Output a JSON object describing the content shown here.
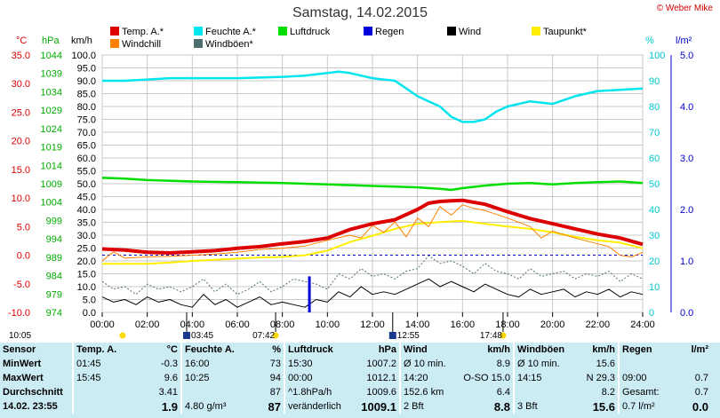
{
  "title": "Samstag, 14.02.2015",
  "copyright": "© Weber Mike",
  "legend": [
    {
      "label": "Temp. A.*",
      "color": "#dd0000"
    },
    {
      "label": "Feuchte A.*",
      "color": "#00e5ee"
    },
    {
      "label": "Luftdruck",
      "color": "#00dd00"
    },
    {
      "label": "Regen",
      "color": "#0000dd"
    },
    {
      "label": "Wind",
      "color": "#000000"
    },
    {
      "label": "Taupunkt*",
      "color": "#ffee00"
    },
    {
      "label": "Windchill",
      "color": "#ff8000"
    },
    {
      "label": "Windböen*",
      "color": "#4f6f6f"
    }
  ],
  "axis_heads": {
    "celsius": "°C",
    "hpa": "hPa",
    "kmh": "km/h",
    "percent": "%",
    "lm2": "l/m²"
  },
  "chart_data": {
    "type": "line",
    "x_ticks": [
      "00:00",
      "02:00",
      "04:00",
      "06:00",
      "08:00",
      "10:00",
      "12:00",
      "14:00",
      "16:00",
      "18:00",
      "20:00",
      "22:00",
      "24:00"
    ],
    "xlim": [
      0,
      24
    ],
    "axes": {
      "celsius": {
        "ylim": [
          -10,
          35
        ],
        "ticks": [
          "35.0",
          "30.0",
          "25.0",
          "20.0",
          "15.0",
          "10.0",
          "5.0",
          "0.0",
          "-5.0",
          "-10.0"
        ]
      },
      "hpa": {
        "ylim": [
          974,
          1044
        ],
        "ticks": [
          "1044",
          "1039",
          "1034",
          "1029",
          "1024",
          "1019",
          "1014",
          "1009",
          "1004",
          "999",
          "994",
          "989",
          "984",
          "979",
          "974"
        ]
      },
      "kmh": {
        "ylim": [
          0,
          100
        ],
        "ticks": [
          "100.0",
          "95.0",
          "90.0",
          "85.0",
          "80.0",
          "75.0",
          "70.0",
          "65.0",
          "60.0",
          "55.0",
          "50.0",
          "45.0",
          "40.0",
          "35.0",
          "30.0",
          "25.0",
          "20.0",
          "15.0",
          "10.0",
          "5.0",
          "0.0"
        ]
      },
      "percent": {
        "ylim": [
          0,
          100
        ],
        "ticks": [
          "100",
          "90",
          "80",
          "70",
          "60",
          "50",
          "40",
          "30",
          "20",
          "10",
          "0"
        ]
      },
      "lm2": {
        "ylim": [
          0,
          5
        ],
        "ticks": [
          "5.0",
          "4.0",
          "3.0",
          "2.0",
          "1.0",
          "0.0"
        ]
      }
    },
    "series": [
      {
        "name": "Feuchte A.*",
        "unit": "%",
        "x": [
          0,
          1,
          2,
          3,
          4,
          6,
          8,
          9,
          10,
          10.5,
          11,
          12,
          12.5,
          13,
          13.5,
          14,
          14.5,
          15,
          15.5,
          16,
          16.5,
          17,
          17.5,
          18,
          19,
          20,
          21,
          22,
          23,
          24
        ],
        "y": [
          90,
          90,
          90.5,
          91,
          91,
          91,
          91.5,
          92,
          93,
          93.5,
          93,
          91,
          90.5,
          90,
          87,
          84,
          82,
          80,
          76,
          74,
          74,
          75,
          78,
          80,
          82,
          81,
          84,
          86,
          86.5,
          87
        ]
      },
      {
        "name": "Luftdruck",
        "unit": "hPa",
        "x": [
          0,
          1,
          2,
          4,
          6,
          8,
          10,
          12,
          13,
          14,
          15,
          15.5,
          16,
          17,
          18,
          19,
          20,
          21,
          22,
          23,
          24
        ],
        "y": [
          1010.6,
          1010.4,
          1010,
          1009.6,
          1009.4,
          1009.2,
          1008.8,
          1008.4,
          1008.2,
          1008,
          1007.6,
          1007.3,
          1007.8,
          1008.5,
          1009,
          1009.2,
          1008.8,
          1009.2,
          1009.4,
          1009.6,
          1009.2
        ]
      },
      {
        "name": "Temp. A.*",
        "unit": "°C",
        "x": [
          0,
          1,
          2,
          3,
          4,
          5,
          6,
          7,
          8,
          9,
          10,
          11,
          12,
          13,
          14,
          14.5,
          15,
          15.5,
          16,
          17,
          18,
          19,
          20,
          21,
          22,
          23,
          24
        ],
        "y": [
          1.1,
          0.9,
          0.5,
          0.4,
          0.6,
          0.8,
          1.2,
          1.5,
          2.0,
          2.4,
          3.0,
          4.5,
          5.5,
          6.2,
          8.0,
          9.1,
          9.4,
          9.5,
          9.6,
          8.9,
          7.6,
          6.4,
          5.5,
          4.6,
          3.7,
          3.0,
          1.9
        ]
      },
      {
        "name": "Taupunkt*",
        "unit": "°C",
        "x": [
          0,
          1,
          2,
          3,
          4,
          5,
          6,
          7,
          8,
          9,
          10,
          11,
          12,
          13,
          14,
          15,
          16,
          17,
          18,
          19,
          20,
          21,
          22,
          23,
          24
        ],
        "y": [
          -1.5,
          -1.5,
          -1.5,
          -1.3,
          -1.0,
          -0.8,
          -0.6,
          -0.4,
          -0.3,
          0.0,
          0.8,
          2.3,
          3.4,
          4.6,
          5.5,
          5.8,
          6.0,
          5.5,
          5.0,
          4.6,
          4.0,
          3.2,
          2.6,
          2.2,
          1.2
        ]
      },
      {
        "name": "Windchill",
        "unit": "°C",
        "x": [
          0,
          0.5,
          1,
          2,
          3,
          4,
          5,
          6,
          7,
          8,
          9,
          10,
          11,
          11.5,
          12,
          12.5,
          13,
          13.5,
          14,
          14.5,
          15,
          15.5,
          16,
          16.5,
          17,
          18,
          19,
          19.5,
          20,
          21,
          22,
          22.5,
          23,
          23.5,
          24
        ],
        "y": [
          -1.0,
          0.6,
          -0.5,
          -0.3,
          -0.2,
          0.0,
          0.2,
          0.5,
          1.0,
          1.2,
          1.6,
          2.6,
          3.5,
          3.0,
          5.2,
          4.0,
          5.8,
          3.2,
          6.5,
          5.0,
          8.5,
          7.0,
          8.8,
          8.2,
          7.8,
          6.5,
          5.0,
          3.0,
          4.2,
          3.0,
          2.0,
          1.5,
          0.0,
          -0.3,
          0.5
        ]
      },
      {
        "name": "Windböen*",
        "unit": "km/h",
        "x": [
          0,
          0.5,
          1,
          1.5,
          2,
          2.5,
          3,
          3.5,
          4,
          4.5,
          5,
          5.5,
          6,
          6.5,
          7,
          7.5,
          8,
          8.5,
          9,
          9.5,
          10,
          10.5,
          11,
          11.5,
          12,
          12.5,
          13,
          13.5,
          14,
          14.5,
          15,
          15.5,
          16,
          16.5,
          17,
          17.5,
          18,
          18.5,
          19,
          19.5,
          20,
          20.5,
          21,
          21.5,
          22,
          22.5,
          23,
          23.5,
          24
        ],
        "y": [
          12,
          9,
          10,
          7,
          11,
          9,
          10,
          8,
          10,
          13,
          8,
          11,
          7,
          9,
          12,
          8,
          10,
          13,
          12,
          11,
          9,
          15,
          13,
          17,
          14,
          15,
          13,
          16,
          17,
          22,
          19,
          20,
          18,
          15,
          19,
          16,
          15,
          13,
          17,
          14,
          15,
          16,
          13,
          15,
          14,
          16,
          12,
          15,
          13
        ]
      },
      {
        "name": "Wind",
        "unit": "km/h",
        "x": [
          0,
          0.5,
          1,
          1.5,
          2,
          2.5,
          3,
          3.5,
          4,
          4.5,
          5,
          5.5,
          6,
          6.5,
          7,
          7.5,
          8,
          8.5,
          9,
          9.5,
          10,
          10.5,
          11,
          11.5,
          12,
          12.5,
          13,
          13.5,
          14,
          14.5,
          15,
          15.5,
          16,
          16.5,
          17,
          17.5,
          18,
          18.5,
          19,
          19.5,
          20,
          20.5,
          21,
          21.5,
          22,
          22.5,
          23,
          23.5,
          24
        ],
        "y": [
          6,
          4,
          5,
          3,
          6,
          4,
          5,
          3,
          2,
          7,
          3,
          5,
          2,
          4,
          6,
          3,
          4,
          3,
          2,
          5,
          4,
          8,
          6,
          10,
          7,
          8,
          7,
          9,
          11,
          13,
          10,
          12,
          10,
          8,
          11,
          9,
          7,
          6,
          9,
          7,
          8,
          9,
          6,
          8,
          7,
          9,
          6,
          8,
          7
        ]
      }
    ],
    "rain": {
      "name": "Regen",
      "unit": "l/m²",
      "x": 9.2,
      "value": 0.7
    },
    "zero_ref_celsius": 0
  },
  "time_markers": [
    {
      "text": "10:05",
      "hour": -0.2,
      "icon": "sun"
    },
    {
      "text": "03:45",
      "hour": 3.75,
      "icon": "moon"
    },
    {
      "text": "07:42",
      "hour": 7.7,
      "icon": "sun"
    },
    {
      "text": "12:55",
      "hour": 12.9,
      "icon": "moon"
    },
    {
      "text": "17:48",
      "hour": 17.8,
      "icon": "sun"
    }
  ],
  "stats": {
    "headers": [
      "Sensor",
      "Temp. A.",
      "°C",
      "Feuchte A.",
      "%",
      "Luftdruck",
      "hPa",
      "Wind",
      "km/h",
      "Windböen",
      "km/h",
      "Regen",
      "l/m²"
    ],
    "rows": [
      {
        "label": "MinWert",
        "cells": [
          "01:45",
          "-0.3",
          "16:00",
          "73",
          "15:30",
          "1007.2",
          "Ø 10 min.",
          "8.9",
          "Ø 10 min.",
          "15.6",
          "",
          ""
        ]
      },
      {
        "label": "MaxWert",
        "cells": [
          "15:45",
          "9.6",
          "10:25",
          "94",
          "00:00",
          "1012.1",
          "14:20",
          "O-SO 15.0",
          "14:15",
          "N 29.3",
          "09:00",
          "0.7"
        ]
      },
      {
        "label": "Durchschnitt",
        "cells": [
          "",
          "3.41",
          "",
          "87",
          "^1.8hPa/h",
          "1009.6",
          "152.6 km",
          "6.4",
          "",
          "8.2",
          "Gesamt:",
          "0.7"
        ]
      },
      {
        "label": "14.02. 23:55",
        "cells": [
          "",
          "1.9",
          "4.80 g/m³",
          "87",
          "veränderlich",
          "1009.1",
          "2 Bft",
          "8.8",
          "3 Bft",
          "15.6",
          "0.7 l/m²",
          "0.0"
        ]
      }
    ]
  }
}
